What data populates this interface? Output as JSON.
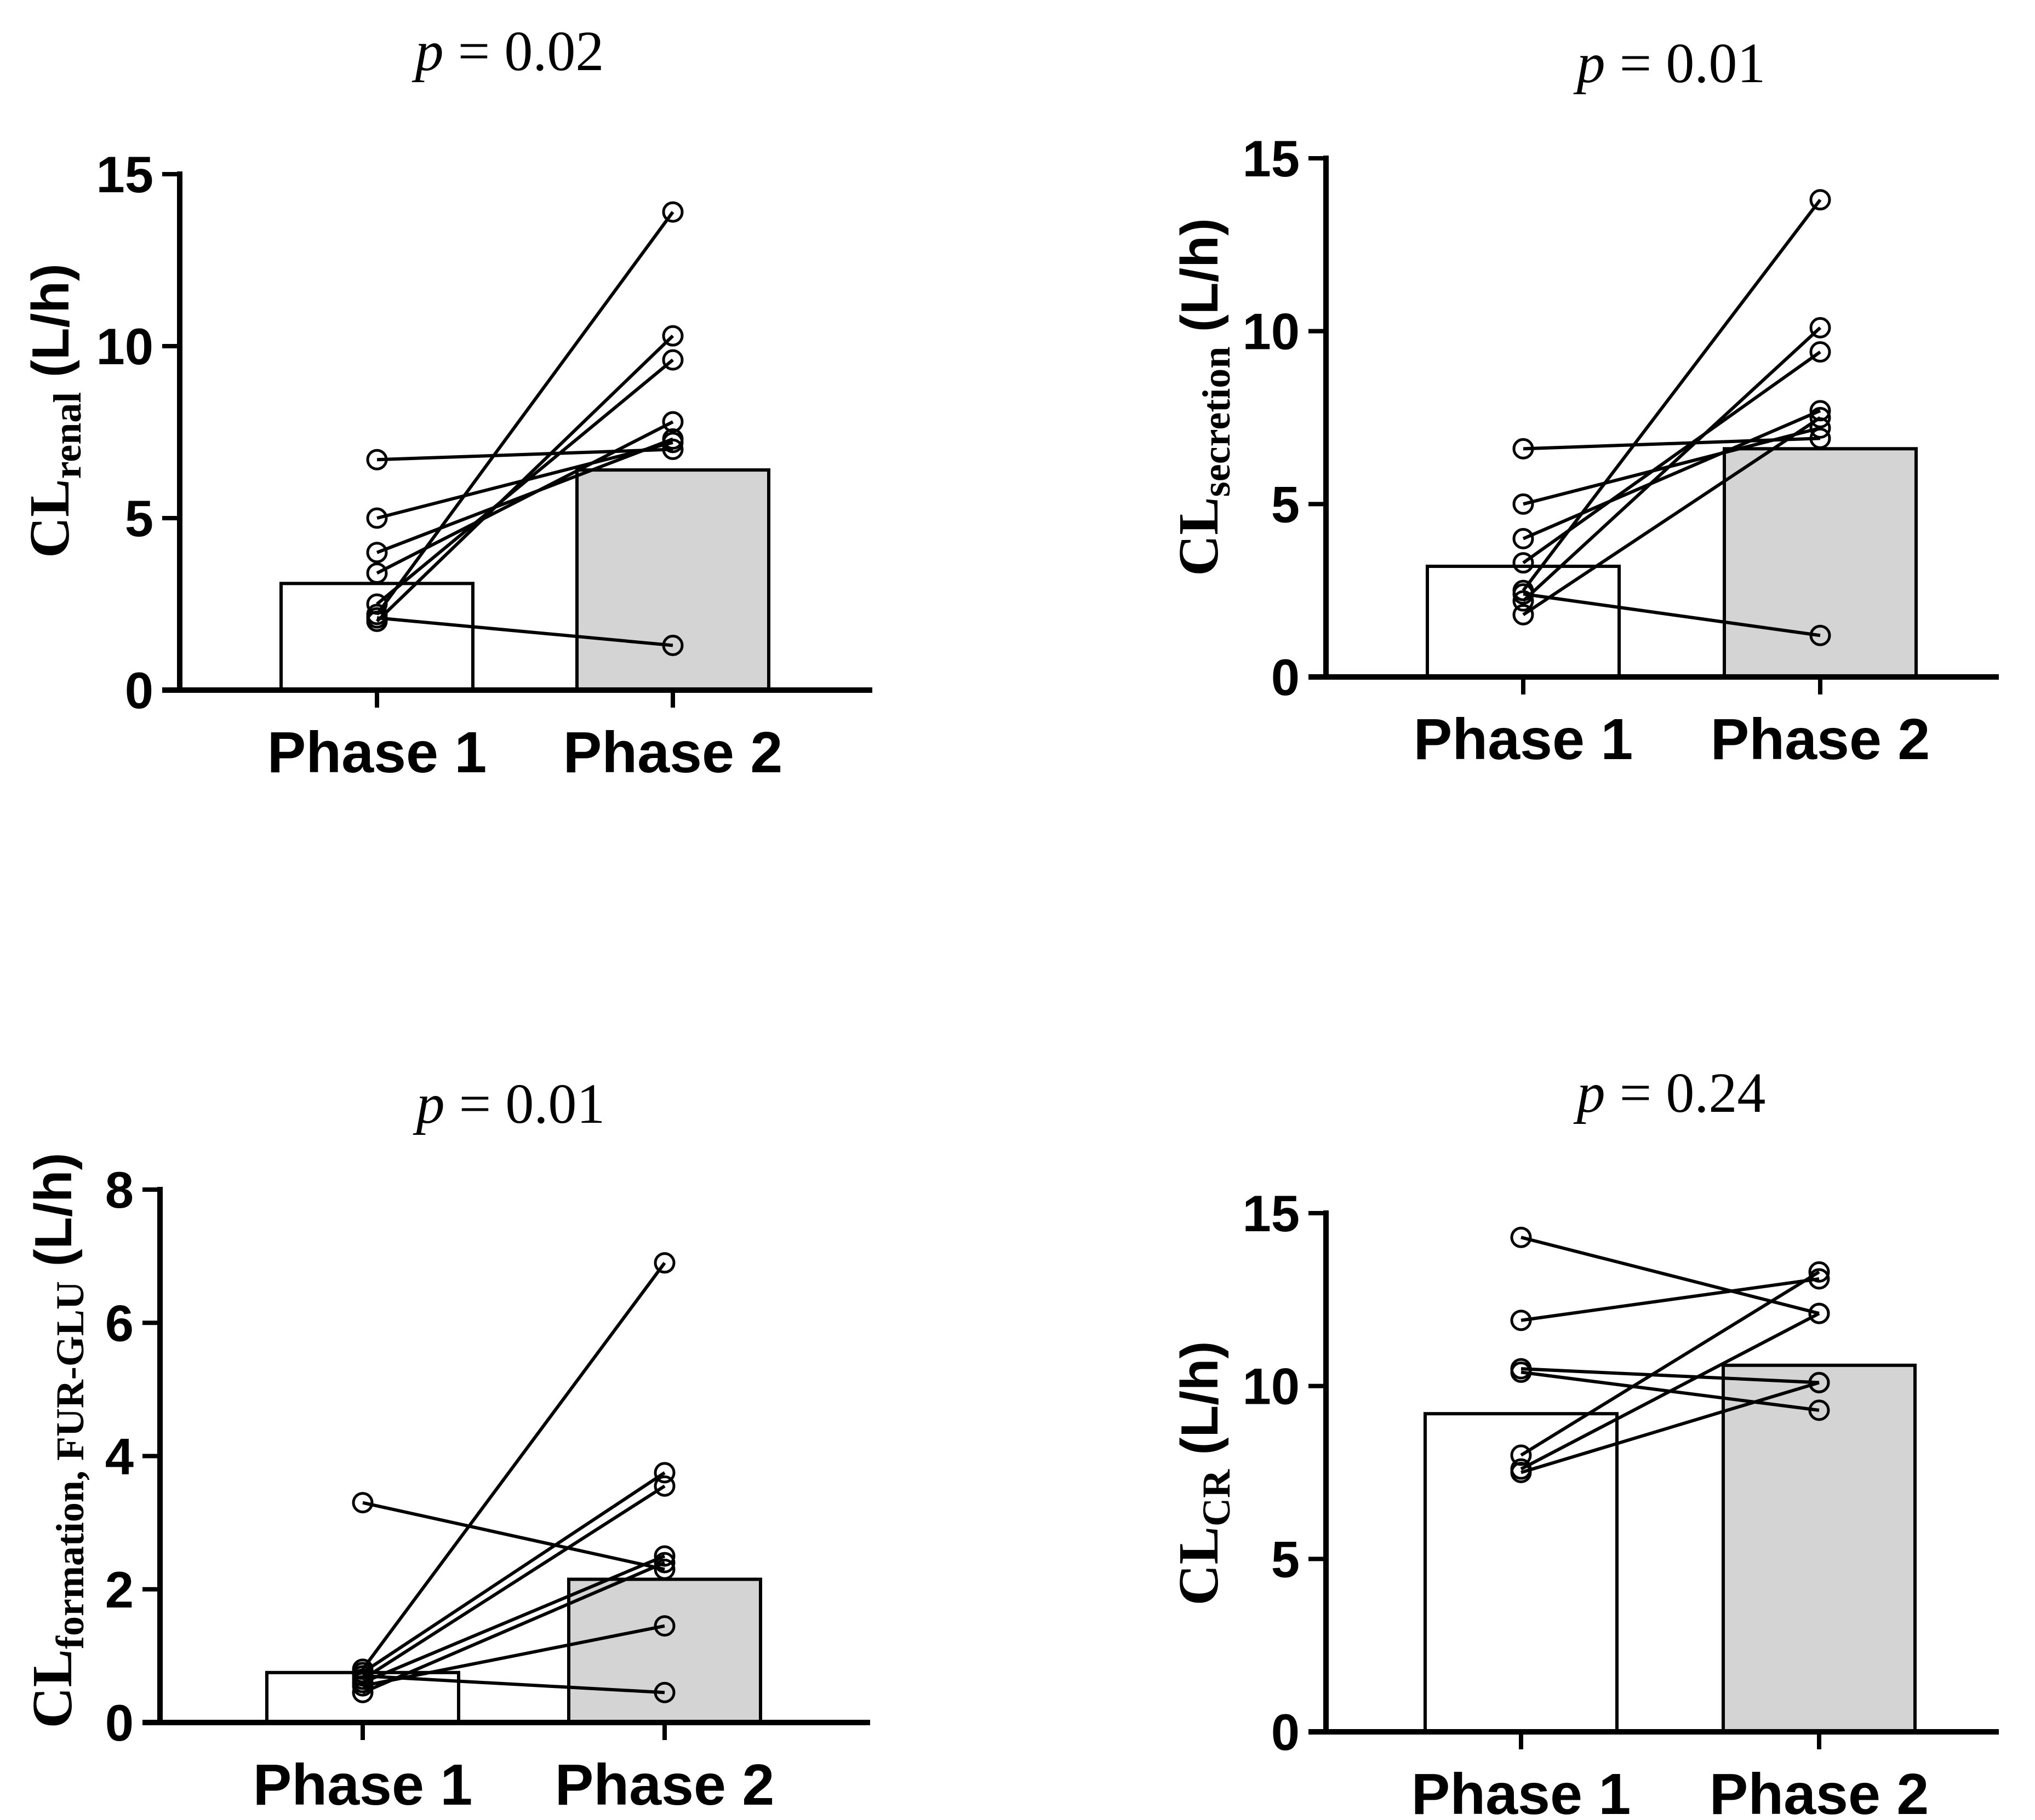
{
  "chart_data": [
    {
      "type": "bar",
      "panel": "top-left",
      "title": "p = 0.02",
      "title_parts": {
        "italic": "p",
        "rest": " = 0.02"
      },
      "ylabel": {
        "main": "CL",
        "sub": "renal",
        "unit": " (L/h)"
      },
      "categories": [
        "Phase 1",
        "Phase 2"
      ],
      "bar_values": [
        3.1,
        6.4
      ],
      "bar_colors": [
        "#ffffff",
        "#d4d4d4"
      ],
      "paired_lines": [
        [
          6.7,
          7.0
        ],
        [
          5.0,
          7.2
        ],
        [
          4.0,
          7.3
        ],
        [
          3.4,
          7.8
        ],
        [
          2.5,
          9.6
        ],
        [
          2.2,
          13.9
        ],
        [
          2.0,
          10.3
        ],
        [
          2.1,
          1.3
        ]
      ],
      "ylim": [
        0,
        15
      ],
      "yticks": [
        "0",
        "5",
        "10",
        "15"
      ],
      "ytick_values": [
        0,
        5,
        10,
        15
      ]
    },
    {
      "type": "bar",
      "panel": "top-right",
      "title": "p = 0.01",
      "title_parts": {
        "italic": "p",
        "rest": " = 0.01"
      },
      "ylabel": {
        "main": "CL",
        "sub": "secretion",
        "unit": " (L/h)"
      },
      "categories": [
        "Phase 1",
        "Phase 2"
      ],
      "bar_values": [
        3.2,
        6.6
      ],
      "bar_colors": [
        "#ffffff",
        "#d4d4d4"
      ],
      "paired_lines": [
        [
          6.6,
          6.9
        ],
        [
          5.0,
          7.2
        ],
        [
          4.0,
          7.7
        ],
        [
          3.3,
          9.4
        ],
        [
          2.5,
          13.8
        ],
        [
          2.2,
          10.1
        ],
        [
          1.8,
          7.5
        ],
        [
          2.4,
          1.2
        ]
      ],
      "ylim": [
        0,
        15
      ],
      "yticks": [
        "0",
        "5",
        "10",
        "15"
      ],
      "ytick_values": [
        0,
        5,
        10,
        15
      ]
    },
    {
      "type": "bar",
      "panel": "bottom-left",
      "title": "p = 0.01",
      "title_parts": {
        "italic": "p",
        "rest": " = 0.01"
      },
      "ylabel": {
        "main": "CL",
        "sub": "formation, FUR-GLU",
        "unit": " (L/h)"
      },
      "categories": [
        "Phase 1",
        "Phase 2"
      ],
      "bar_values": [
        0.75,
        2.15
      ],
      "bar_colors": [
        "#ffffff",
        "#d4d4d4"
      ],
      "paired_lines": [
        [
          3.3,
          2.3
        ],
        [
          0.8,
          6.9
        ],
        [
          0.75,
          3.75
        ],
        [
          0.65,
          3.55
        ],
        [
          0.6,
          2.5
        ],
        [
          0.55,
          1.45
        ],
        [
          0.7,
          0.45
        ],
        [
          0.45,
          2.4
        ]
      ],
      "ylim": [
        0,
        8
      ],
      "yticks": [
        "0",
        "2",
        "4",
        "6",
        "8"
      ],
      "ytick_values": [
        0,
        2,
        4,
        6,
        8
      ]
    },
    {
      "type": "bar",
      "panel": "bottom-right",
      "title": "p = 0.24",
      "title_parts": {
        "italic": "p",
        "rest": " = 0.24"
      },
      "ylabel": {
        "main": "CL",
        "sub": "CR",
        "unit": " (L/h)"
      },
      "categories": [
        "Phase 1",
        "Phase 2"
      ],
      "bar_values": [
        9.2,
        10.6
      ],
      "bar_colors": [
        "#ffffff",
        "#d4d4d4"
      ],
      "paired_lines": [
        [
          14.3,
          12.1
        ],
        [
          11.9,
          13.1
        ],
        [
          10.5,
          10.1
        ],
        [
          10.4,
          9.3
        ],
        [
          8.0,
          13.3
        ],
        [
          7.6,
          12.1
        ],
        [
          7.5,
          10.1
        ]
      ],
      "ylim": [
        0,
        15
      ],
      "yticks": [
        "0",
        "5",
        "10",
        "15"
      ],
      "ytick_values": [
        0,
        5,
        10,
        15
      ]
    }
  ]
}
